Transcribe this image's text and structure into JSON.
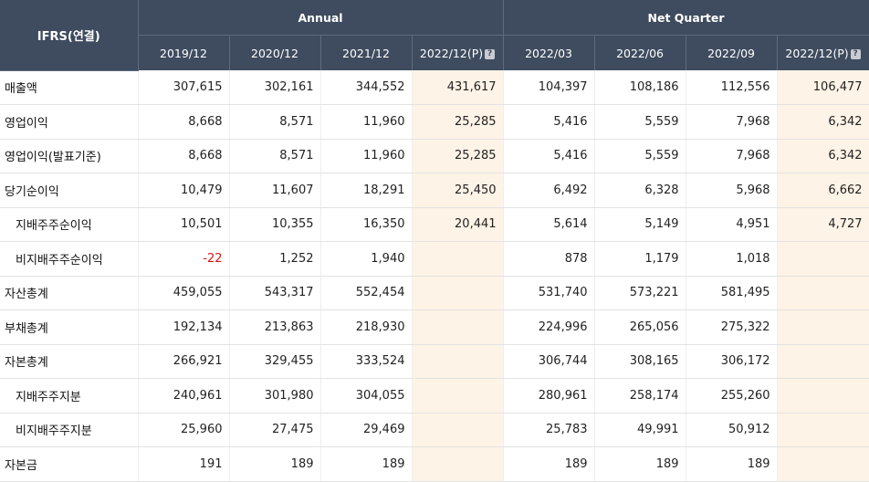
{
  "header": {
    "corner": "IFRS(연결)",
    "annual_label": "Annual",
    "quarter_label": "Net Quarter",
    "annual_periods": [
      "2019/12",
      "2020/12",
      "2021/12",
      "2022/12(P)"
    ],
    "quarter_periods": [
      "2022/03",
      "2022/06",
      "2022/09",
      "2022/12(P)"
    ],
    "hint_icon": "?"
  },
  "colors": {
    "header_bg": "#3f4c5f",
    "estimate_bg": "#fdf3e6",
    "negative": "#e01010"
  },
  "rows": [
    {
      "label": "매출액",
      "sub": false,
      "values": [
        "307,615",
        "302,161",
        "344,552",
        "431,617",
        "104,397",
        "108,186",
        "112,556",
        "106,477"
      ]
    },
    {
      "label": "영업이익",
      "sub": false,
      "values": [
        "8,668",
        "8,571",
        "11,960",
        "25,285",
        "5,416",
        "5,559",
        "7,968",
        "6,342"
      ]
    },
    {
      "label": "영업이익(발표기준)",
      "sub": false,
      "values": [
        "8,668",
        "8,571",
        "11,960",
        "25,285",
        "5,416",
        "5,559",
        "7,968",
        "6,342"
      ]
    },
    {
      "label": "당기순이익",
      "sub": false,
      "values": [
        "10,479",
        "11,607",
        "18,291",
        "25,450",
        "6,492",
        "6,328",
        "5,968",
        "6,662"
      ]
    },
    {
      "label": "지배주주순이익",
      "sub": true,
      "values": [
        "10,501",
        "10,355",
        "16,350",
        "20,441",
        "5,614",
        "5,149",
        "4,951",
        "4,727"
      ]
    },
    {
      "label": "비지배주주순이익",
      "sub": true,
      "values": [
        "-22",
        "1,252",
        "1,940",
        "",
        "878",
        "1,179",
        "1,018",
        ""
      ]
    },
    {
      "label": "자산총계",
      "sub": false,
      "values": [
        "459,055",
        "543,317",
        "552,454",
        "",
        "531,740",
        "573,221",
        "581,495",
        ""
      ]
    },
    {
      "label": "부채총계",
      "sub": false,
      "values": [
        "192,134",
        "213,863",
        "218,930",
        "",
        "224,996",
        "265,056",
        "275,322",
        ""
      ]
    },
    {
      "label": "자본총계",
      "sub": false,
      "values": [
        "266,921",
        "329,455",
        "333,524",
        "",
        "306,744",
        "308,165",
        "306,172",
        ""
      ]
    },
    {
      "label": "지배주주지분",
      "sub": true,
      "values": [
        "240,961",
        "301,980",
        "304,055",
        "",
        "280,961",
        "258,174",
        "255,260",
        ""
      ]
    },
    {
      "label": "비지배주주지분",
      "sub": true,
      "values": [
        "25,960",
        "27,475",
        "29,469",
        "",
        "25,783",
        "49,991",
        "50,912",
        ""
      ]
    },
    {
      "label": "자본금",
      "sub": false,
      "values": [
        "191",
        "189",
        "189",
        "",
        "189",
        "189",
        "189",
        ""
      ]
    }
  ]
}
